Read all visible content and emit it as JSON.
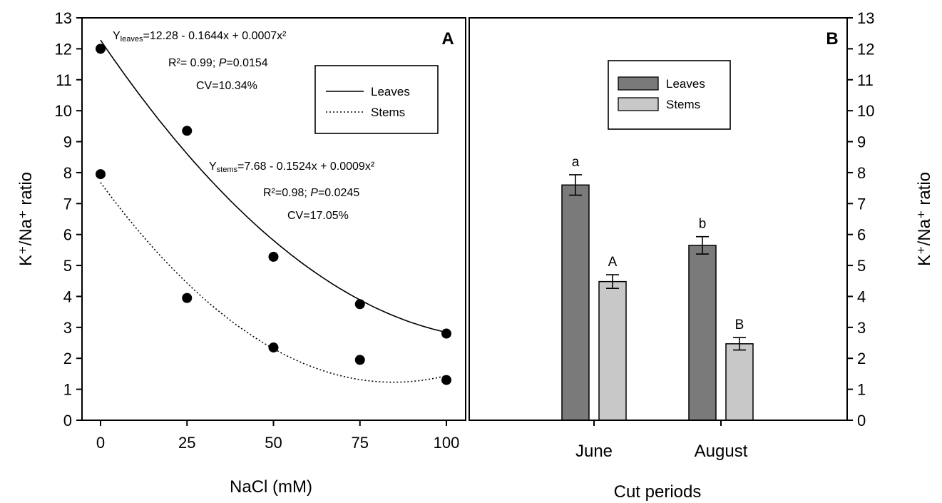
{
  "chart_data": [
    {
      "panel": "A",
      "type": "scatter",
      "xlabel": "NaCl (mM)",
      "ylabel": "K⁺/Na⁺ ratio",
      "xlim": [
        0,
        100
      ],
      "ylim": [
        0,
        13
      ],
      "xticks": [
        0,
        25,
        50,
        75,
        100
      ],
      "yticks": [
        0,
        1,
        2,
        3,
        4,
        5,
        6,
        7,
        8,
        9,
        10,
        11,
        12,
        13
      ],
      "legend": {
        "placement": "top-right",
        "entries": [
          {
            "label": "Leaves",
            "style": "solid"
          },
          {
            "label": "Stems",
            "style": "dotted"
          }
        ]
      },
      "series": [
        {
          "name": "Leaves",
          "x": [
            0,
            25,
            50,
            75,
            100
          ],
          "y": [
            12.0,
            9.35,
            5.28,
            3.75,
            2.8
          ],
          "fit": {
            "a": 12.28,
            "b": -0.1644,
            "c": 0.0007,
            "style": "solid"
          },
          "equation": {
            "y_main": "Y",
            "y_sub": "leaves",
            "rhs": "=12.28 - 0.1644x + 0.0007x²",
            "r2": "R²= 0.99; ",
            "p_symbol": "P",
            "p_value": "=0.0154",
            "cv": "CV=10.34%"
          }
        },
        {
          "name": "Stems",
          "x": [
            0,
            25,
            50,
            75,
            100
          ],
          "y": [
            7.95,
            3.95,
            2.35,
            1.95,
            1.3
          ],
          "fit": {
            "a": 7.68,
            "b": -0.1524,
            "c": 0.0009,
            "style": "dotted"
          },
          "equation": {
            "y_main": "Y",
            "y_sub": "stems",
            "rhs": "=7.68 - 0.1524x + 0.0009x²",
            "r2": "R²=0.98; ",
            "p_symbol": "P",
            "p_value": "=0.0245",
            "cv": "CV=17.05%"
          }
        }
      ]
    },
    {
      "panel": "B",
      "type": "bar",
      "xlabel": "Cut periods",
      "ylabel": "K⁺/Na⁺ ratio",
      "ylim": [
        0,
        13
      ],
      "yticks": [
        0,
        1,
        2,
        3,
        4,
        5,
        6,
        7,
        8,
        9,
        10,
        11,
        12,
        13
      ],
      "categories": [
        "June",
        "August"
      ],
      "legend": {
        "placement": "top-center",
        "entries": [
          {
            "label": "Leaves",
            "color": "#7a7a7a"
          },
          {
            "label": "Stems",
            "color": "#c8c8c8"
          }
        ]
      },
      "series": [
        {
          "name": "Leaves",
          "color": "#7a7a7a",
          "values": [
            7.6,
            5.65
          ],
          "errors": [
            0.33,
            0.28
          ],
          "letters": [
            "a",
            "b"
          ]
        },
        {
          "name": "Stems",
          "color": "#c8c8c8",
          "values": [
            4.48,
            2.47
          ],
          "errors": [
            0.22,
            0.2
          ],
          "letters": [
            "A",
            "B"
          ]
        }
      ]
    }
  ]
}
